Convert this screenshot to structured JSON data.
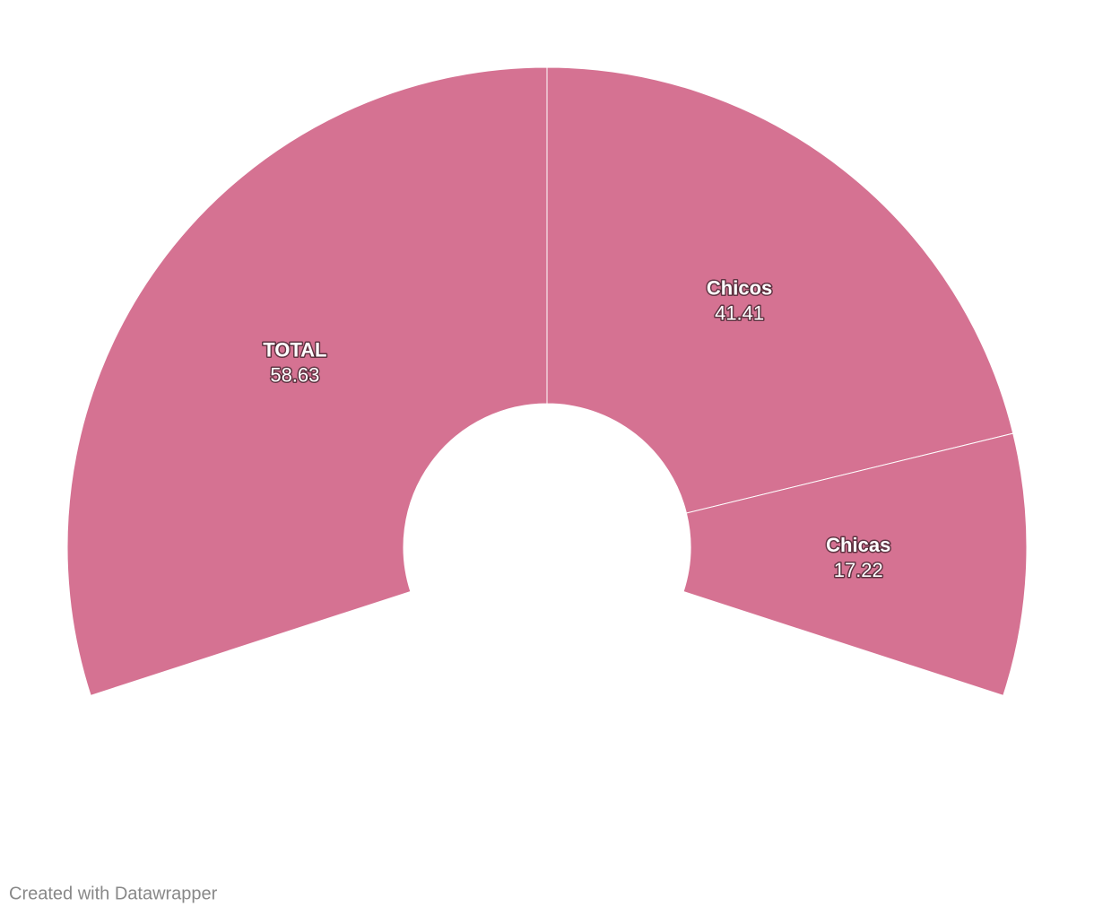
{
  "chart_data": {
    "type": "pie",
    "categories": [
      "TOTAL",
      "Chicos",
      "Chicas"
    ],
    "values": [
      58.63,
      41.41,
      17.22
    ],
    "color": "#d57292",
    "credit": "Created with Datawrapper"
  }
}
